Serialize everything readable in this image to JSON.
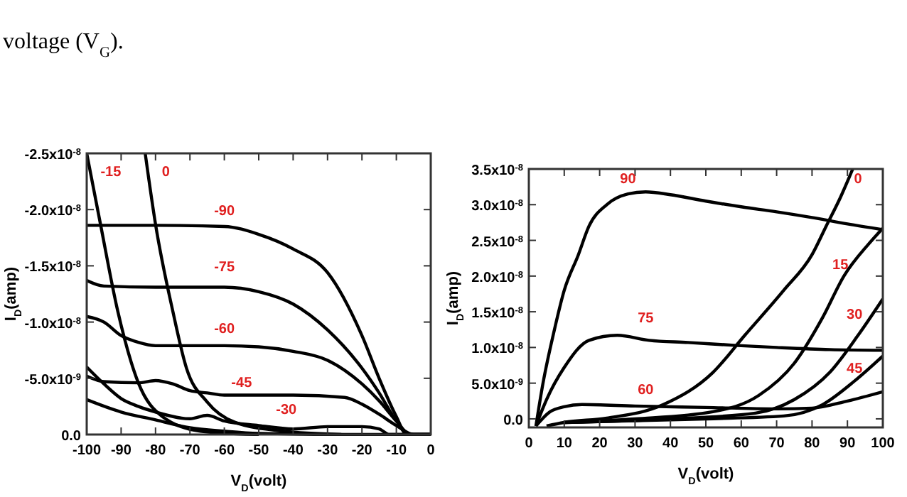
{
  "chart_data": [
    {
      "type": "line",
      "xlabel": "V$_{D}$(volt)",
      "ylabel": "I$_{D}$(amp)",
      "annotations": [
        "voltage (V$_{G}$)."
      ],
      "xlim": [
        -100,
        0
      ],
      "ylim": [
        0,
        -2.5e-08
      ],
      "xticks": [
        -100,
        -90,
        -80,
        -70,
        -60,
        -50,
        -40,
        -30,
        -20,
        -10,
        0
      ],
      "yticks": [
        {
          "value": -2.5e-08,
          "label": "-2.5x10$^{-8}$"
        },
        {
          "value": -2e-08,
          "label": "-2.0x10$^{-8}$"
        },
        {
          "value": -1.5e-08,
          "label": "-1.5x10$^{-8}$"
        },
        {
          "value": -1e-08,
          "label": "-1.0x10$^{-8}$"
        },
        {
          "value": -5e-09,
          "label": "-5.0x10$^{-9}$"
        },
        {
          "value": 0,
          "label": "0.0"
        }
      ],
      "grid": false,
      "marker": "none",
      "line_style": "solid",
      "series": [
        {
          "name": "-15",
          "color": "#000000",
          "x": [
            -100,
            -96,
            -91,
            -85,
            -78,
            -67,
            -50
          ],
          "values": [
            -2.5e-08,
            -1.87e-08,
            -1.1e-08,
            -4.6e-09,
            -1.6e-09,
            -3e-10,
            0
          ]
        },
        {
          "name": "0",
          "color": "#000000",
          "x": [
            -83,
            -80,
            -75,
            -71,
            -65,
            -57,
            -43,
            -26
          ],
          "values": [
            -2.5e-08,
            -1.87e-08,
            -1.1e-08,
            -5.9e-09,
            -2.9e-09,
            -1.1e-09,
            -3e-10,
            0
          ]
        },
        {
          "name": "-90",
          "color": "#000000",
          "x": [
            -100,
            -80,
            -60,
            -50,
            -40,
            -30,
            -20,
            -15,
            -10,
            -7,
            0
          ],
          "values": [
            -1.86e-08,
            -1.86e-08,
            -1.85e-08,
            -1.78e-08,
            -1.65e-08,
            -1.44e-08,
            -8.8e-09,
            -5e-09,
            -1.6e-09,
            0,
            0
          ]
        },
        {
          "name": "-75",
          "color": "#000000",
          "x": [
            -100,
            -95,
            -80,
            -60,
            -50,
            -40,
            -30,
            -20,
            -15,
            -10,
            -6,
            0
          ],
          "values": [
            -1.37e-08,
            -1.32e-08,
            -1.31e-08,
            -1.31e-08,
            -1.27e-08,
            -1.16e-08,
            -9.3e-09,
            -5.9e-09,
            -3.7e-09,
            -1.2e-09,
            0,
            0
          ]
        },
        {
          "name": "-60",
          "color": "#000000",
          "x": [
            -100,
            -95,
            -90,
            -85,
            -80,
            -60,
            -50,
            -40,
            -30,
            -20,
            -15,
            -10,
            -6,
            0
          ],
          "values": [
            -1.05e-08,
            -1e-08,
            -8.8e-09,
            -8.2e-09,
            -7.9e-09,
            -7.9e-09,
            -7.8e-09,
            -7.4e-09,
            -6.6e-09,
            -4.5e-09,
            -3e-09,
            -1.2e-09,
            0,
            0
          ]
        },
        {
          "name": "-45",
          "color": "#000000",
          "x": [
            -100,
            -95,
            -85,
            -80,
            -75,
            -70,
            -65,
            -60,
            -40,
            -25,
            -20,
            -15,
            -10,
            -5,
            0
          ],
          "values": [
            -5.2e-09,
            -4.7e-09,
            -4.6e-09,
            -4.8e-09,
            -4.5e-09,
            -3.9e-09,
            -3.7e-09,
            -3.5e-09,
            -3.5e-09,
            -3.3e-09,
            -2.7e-09,
            -1.8e-09,
            -8e-10,
            0,
            0
          ]
        },
        {
          "name": "-30",
          "color": "#000000",
          "x": [
            -100,
            -95,
            -90,
            -85,
            -80,
            -70,
            -65,
            -60,
            -50,
            -40,
            -30,
            -20,
            -15,
            -12,
            0
          ],
          "values": [
            -6e-09,
            -4.5e-09,
            -3.2e-09,
            -2.5e-09,
            -2e-09,
            -1.4e-09,
            -1.7e-09,
            -1.2e-09,
            -8e-10,
            -5e-10,
            -7e-10,
            -7e-10,
            -5e-10,
            0,
            0
          ]
        },
        {
          "color": "#000000",
          "x": [
            -100,
            -90,
            -80,
            -70,
            -60,
            -50,
            -25,
            0
          ],
          "values": [
            -3.1e-09,
            -2e-09,
            -1.3e-09,
            -6e-10,
            -3e-10,
            -1e-10,
            0,
            0
          ]
        }
      ]
    },
    {
      "type": "line",
      "xlabel": "V$_{D}$(volt)",
      "ylabel": "I$_{D}$(amp)",
      "xlim": [
        0,
        100
      ],
      "ylim": [
        -1.2e-09,
        3.5e-08
      ],
      "xticks": [
        0,
        10,
        20,
        30,
        40,
        50,
        60,
        70,
        80,
        90,
        100
      ],
      "yticks": [
        {
          "value": 0,
          "label": "0.0"
        },
        {
          "value": 5e-09,
          "label": "5.0x10$^{-9}$"
        },
        {
          "value": 1e-08,
          "label": "1.0x10$^{-8}$"
        },
        {
          "value": 1.5e-08,
          "label": "1.5x10$^{-8}$"
        },
        {
          "value": 2e-08,
          "label": "2.0x10$^{-8}$"
        },
        {
          "value": 2.5e-08,
          "label": "2.5x10$^{-8}$"
        },
        {
          "value": 3e-08,
          "label": "3.0x10$^{-8}$"
        },
        {
          "value": 3.5e-08,
          "label": "3.5x10$^{-8}$"
        }
      ],
      "grid": false,
      "marker": "none",
      "line_style": "solid",
      "series": [
        {
          "name": "90",
          "color": "#000000",
          "x": [
            2,
            4,
            7,
            10,
            14,
            17,
            22,
            28,
            33,
            40,
            50,
            60,
            70,
            80,
            90,
            100
          ],
          "values": [
            -1e-09,
            5e-09,
            1.2e-08,
            1.8e-08,
            2.3e-08,
            2.7e-08,
            3e-08,
            3.15e-08,
            3.18e-08,
            3.14e-08,
            3.05e-08,
            2.97e-08,
            2.9e-08,
            2.82e-08,
            2.73e-08,
            2.65e-08
          ]
        },
        {
          "name": "75",
          "color": "#000000",
          "x": [
            2,
            5,
            10,
            17,
            25,
            34,
            45,
            58,
            70,
            85,
            100
          ],
          "values": [
            -1e-09,
            2.7e-09,
            7.2e-09,
            1.1e-08,
            1.17e-08,
            1.1e-08,
            1.07e-08,
            1.03e-08,
            1e-08,
            9.7e-09,
            9.6e-09
          ]
        },
        {
          "name": "60",
          "color": "#000000",
          "x": [
            2,
            6,
            10,
            15,
            30,
            50,
            70,
            80,
            90,
            100
          ],
          "values": [
            -1e-09,
            1e-09,
            1.7e-09,
            2e-09,
            1.8e-09,
            1.6e-09,
            1.4e-09,
            1.5e-09,
            2.5e-09,
            3.8e-09
          ]
        },
        {
          "name": "0",
          "color": "#000000",
          "x": [
            5,
            10,
            22,
            38,
            52,
            61,
            72,
            80,
            84,
            88,
            91.5
          ],
          "values": [
            -1e-09,
            -5e-10,
            1e-10,
            2e-09,
            6.5e-09,
            1.17e-08,
            1.8e-08,
            2.3e-08,
            2.7e-08,
            3.1e-08,
            3.5e-08
          ]
        },
        {
          "name": "15",
          "color": "#000000",
          "x": [
            10,
            30,
            52,
            65,
            75,
            83,
            89,
            96,
            100
          ],
          "values": [
            -5e-10,
            0,
            1e-09,
            3.3e-09,
            7.8e-09,
            1.42e-08,
            2e-08,
            2.45e-08,
            2.67e-08
          ]
        },
        {
          "name": "30",
          "color": "#000000",
          "x": [
            10,
            40,
            64,
            75,
            85,
            93,
            100
          ],
          "values": [
            -5e-10,
            0,
            8e-10,
            2.7e-09,
            6.5e-09,
            1.17e-08,
            1.68e-08
          ]
        },
        {
          "name": "45",
          "color": "#000000",
          "x": [
            10,
            50,
            72,
            83,
            92,
            100
          ],
          "values": [
            -5e-10,
            0,
            4e-10,
            2e-09,
            5.3e-09,
            8.8e-09
          ]
        }
      ]
    }
  ]
}
